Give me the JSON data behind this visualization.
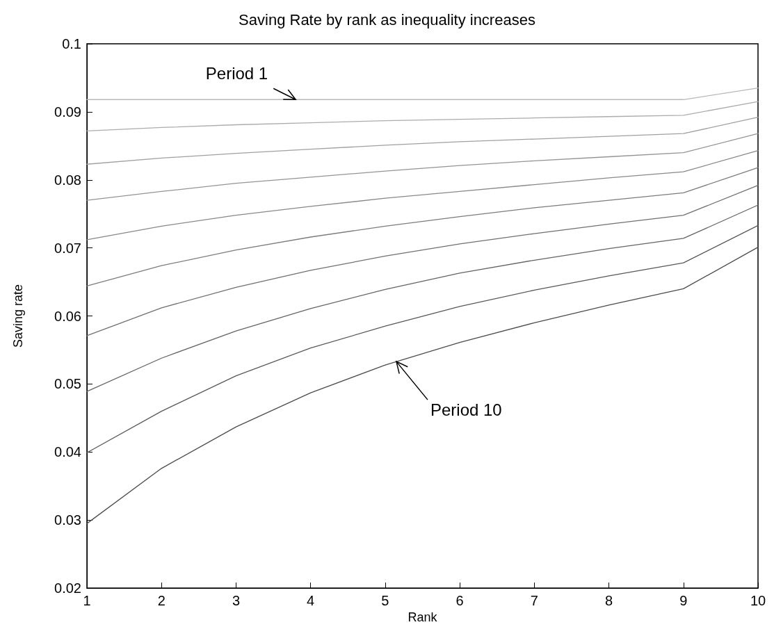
{
  "chart_data": {
    "type": "line",
    "title": "Saving Rate by rank as inequality increases",
    "xlabel": "Rank",
    "ylabel": "Saving rate",
    "x": [
      1,
      2,
      3,
      4,
      5,
      6,
      7,
      8,
      9,
      10
    ],
    "series": [
      {
        "color": "#b8b8b8",
        "values": [
          0.0918,
          0.0918,
          0.0918,
          0.0918,
          0.0918,
          0.0918,
          0.0918,
          0.0918,
          0.0918,
          0.0935
        ]
      },
      {
        "color": "#acacac",
        "values": [
          0.0872,
          0.0877,
          0.0881,
          0.0884,
          0.0887,
          0.0889,
          0.0891,
          0.0893,
          0.0895,
          0.0915
        ]
      },
      {
        "color": "#a0a0a0",
        "values": [
          0.0823,
          0.0832,
          0.0839,
          0.0845,
          0.0851,
          0.0856,
          0.086,
          0.0864,
          0.0868,
          0.0892
        ]
      },
      {
        "color": "#949494",
        "values": [
          0.077,
          0.0783,
          0.0795,
          0.0804,
          0.0813,
          0.0821,
          0.0828,
          0.0834,
          0.084,
          0.0868
        ]
      },
      {
        "color": "#888888",
        "values": [
          0.0712,
          0.0732,
          0.0748,
          0.0761,
          0.0773,
          0.0783,
          0.0793,
          0.0803,
          0.0812,
          0.0843
        ]
      },
      {
        "color": "#7c7c7c",
        "values": [
          0.0644,
          0.0674,
          0.0697,
          0.0716,
          0.0732,
          0.0746,
          0.0759,
          0.077,
          0.0781,
          0.0818
        ]
      },
      {
        "color": "#707070",
        "values": [
          0.0571,
          0.0612,
          0.0642,
          0.0667,
          0.0688,
          0.0706,
          0.0721,
          0.0735,
          0.0748,
          0.0792
        ]
      },
      {
        "color": "#646464",
        "values": [
          0.0489,
          0.0538,
          0.0578,
          0.0611,
          0.0639,
          0.0663,
          0.0682,
          0.0699,
          0.0714,
          0.0763
        ]
      },
      {
        "color": "#585858",
        "values": [
          0.0399,
          0.046,
          0.0512,
          0.0553,
          0.0585,
          0.0614,
          0.0638,
          0.0659,
          0.0678,
          0.0733
        ]
      },
      {
        "color": "#4c4c4c",
        "values": [
          0.0295,
          0.0376,
          0.0437,
          0.0487,
          0.0528,
          0.0561,
          0.059,
          0.0616,
          0.064,
          0.0701
        ]
      }
    ],
    "xlim": [
      1,
      10
    ],
    "xticks": [
      1,
      2,
      3,
      4,
      5,
      6,
      7,
      8,
      9,
      10
    ],
    "ylim": [
      0.02,
      0.1
    ],
    "yticks": [
      0.02,
      0.03,
      0.04,
      0.05,
      0.06,
      0.07,
      0.08,
      0.09,
      0.1
    ],
    "annotations": [
      {
        "text": "Period 1",
        "x": 3.8,
        "y": 0.0918
      },
      {
        "text": "Period 10",
        "x": 5.15,
        "y": 0.0533
      }
    ],
    "grid": false,
    "marker": "none",
    "line_style": "solid"
  }
}
